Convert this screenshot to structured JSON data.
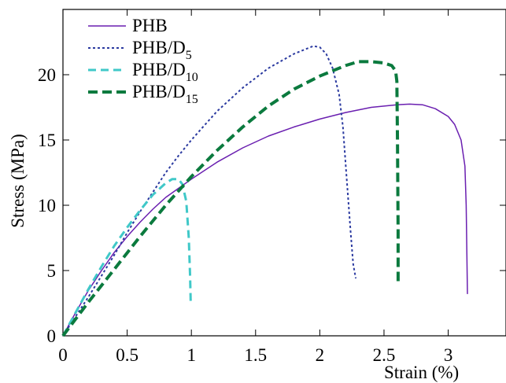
{
  "chart_data": {
    "type": "line",
    "xlabel": "Strain (%)",
    "ylabel": "Stress (MPa)",
    "xlim": [
      0,
      3.45
    ],
    "ylim": [
      0,
      25
    ],
    "xticks": [
      "0",
      "0.5",
      "1",
      "1.5",
      "2",
      "2.5",
      "3"
    ],
    "yticks": [
      "0",
      "5",
      "10",
      "15",
      "20"
    ],
    "grid": false,
    "legend_position": "top-left",
    "series": [
      {
        "name": "PHB",
        "legend_base": "PHB",
        "legend_sub": "",
        "color": "#6a1fb0",
        "style": "solid",
        "x": [
          0,
          0.1,
          0.2,
          0.3,
          0.4,
          0.5,
          0.6,
          0.7,
          0.8,
          0.9,
          1.0,
          1.2,
          1.4,
          1.6,
          1.8,
          2.0,
          2.2,
          2.4,
          2.6,
          2.7,
          2.8,
          2.9,
          3.0,
          3.05,
          3.1,
          3.13,
          3.14,
          3.15
        ],
        "y": [
          0,
          1.8,
          3.5,
          5.0,
          6.4,
          7.6,
          8.7,
          9.7,
          10.6,
          11.3,
          12.0,
          13.3,
          14.4,
          15.3,
          16.0,
          16.6,
          17.1,
          17.5,
          17.7,
          17.75,
          17.7,
          17.4,
          16.8,
          16.2,
          15.0,
          13.0,
          10.0,
          3.2
        ]
      },
      {
        "name": "PHB/D5",
        "legend_base": "PHB/D",
        "legend_sub": "5",
        "color": "#2b3aa0",
        "style": "dotted",
        "x": [
          0,
          0.1,
          0.2,
          0.3,
          0.4,
          0.5,
          0.6,
          0.7,
          0.8,
          0.9,
          1.0,
          1.1,
          1.2,
          1.4,
          1.6,
          1.8,
          1.9,
          1.95,
          2.0,
          2.05,
          2.1,
          2.15,
          2.18,
          2.21,
          2.24,
          2.26,
          2.28
        ],
        "y": [
          0,
          1.5,
          3.0,
          4.6,
          6.2,
          7.9,
          9.5,
          11.0,
          12.5,
          13.8,
          15.0,
          16.1,
          17.2,
          19.0,
          20.5,
          21.6,
          22.0,
          22.2,
          22.1,
          21.6,
          20.5,
          18.5,
          16.0,
          12.0,
          8.0,
          5.5,
          4.4
        ]
      },
      {
        "name": "PHB/D10",
        "legend_base": "PHB/D",
        "legend_sub": "10",
        "color": "#40c8c8",
        "style": "dashed",
        "x": [
          0,
          0.1,
          0.2,
          0.3,
          0.4,
          0.5,
          0.6,
          0.7,
          0.8,
          0.85,
          0.9,
          0.93,
          0.96,
          0.98,
          0.99,
          0.995
        ],
        "y": [
          0,
          1.8,
          3.6,
          5.3,
          6.9,
          8.3,
          9.6,
          10.8,
          11.7,
          12.0,
          12.0,
          11.6,
          10.3,
          7.5,
          4.5,
          2.4
        ]
      },
      {
        "name": "PHB/D15",
        "legend_base": "PHB/D",
        "legend_sub": "15",
        "color": "#0b7a3e",
        "style": "bold-dashed",
        "x": [
          0,
          0.2,
          0.4,
          0.6,
          0.8,
          1.0,
          1.2,
          1.4,
          1.6,
          1.8,
          2.0,
          2.2,
          2.3,
          2.4,
          2.5,
          2.56,
          2.59,
          2.6,
          2.605,
          2.61,
          2.61
        ],
        "y": [
          0,
          2.6,
          5.1,
          7.6,
          10.0,
          12.2,
          14.2,
          16.0,
          17.6,
          18.9,
          19.9,
          20.7,
          21.0,
          21.0,
          20.9,
          20.7,
          20.3,
          19.5,
          15.0,
          8.0,
          3.9
        ]
      }
    ]
  }
}
